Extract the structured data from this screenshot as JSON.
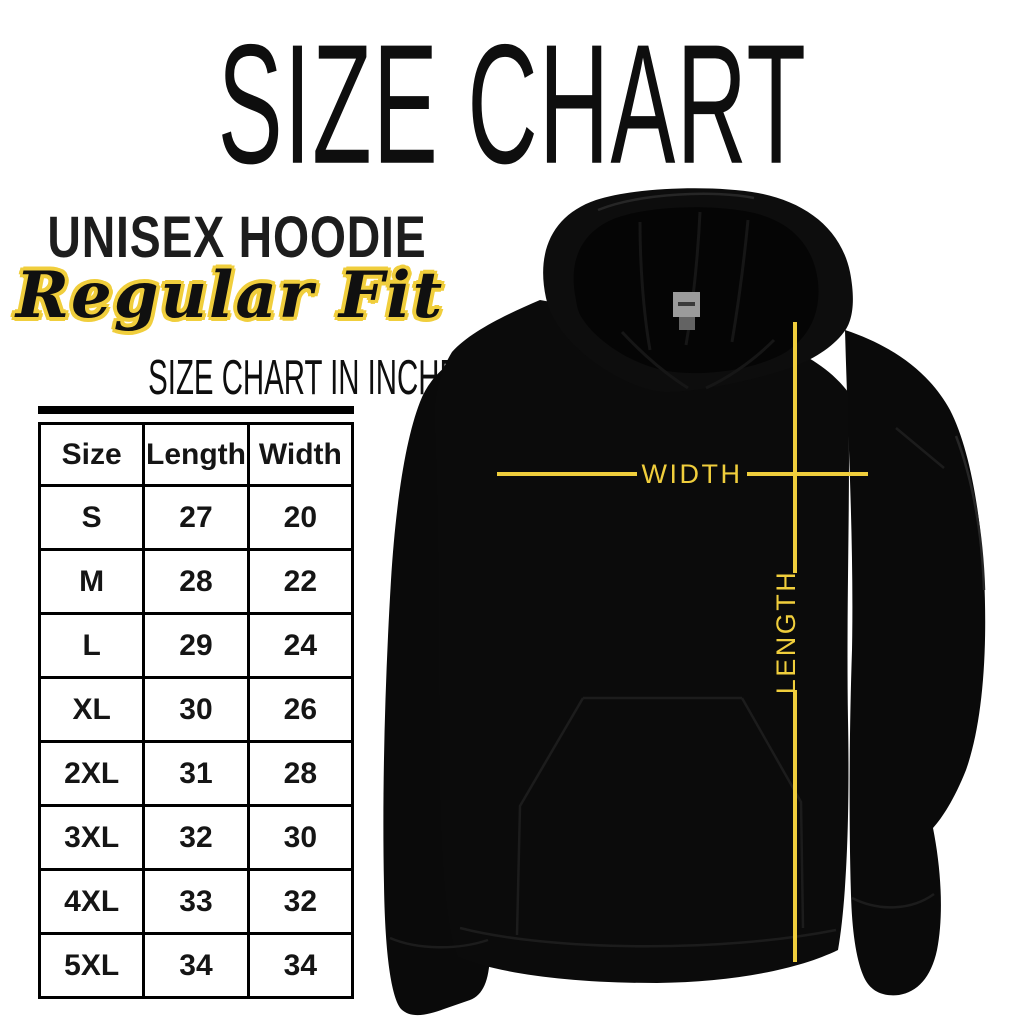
{
  "title": "SIZE CHART",
  "brand": {
    "product_line": "UNISEX HOODIE",
    "fit": "Regular Fit"
  },
  "table_section": {
    "heading": "SIZE CHART IN INCHES"
  },
  "size_table": {
    "columns": [
      "Size",
      "Length",
      "Width"
    ],
    "rows": [
      {
        "size": "S",
        "length": "27",
        "width": "20"
      },
      {
        "size": "M",
        "length": "28",
        "width": "22"
      },
      {
        "size": "L",
        "length": "29",
        "width": "24"
      },
      {
        "size": "XL",
        "length": "30",
        "width": "26"
      },
      {
        "size": "2XL",
        "length": "31",
        "width": "28"
      },
      {
        "size": "3XL",
        "length": "32",
        "width": "30"
      },
      {
        "size": "4XL",
        "length": "33",
        "width": "32"
      },
      {
        "size": "5XL",
        "length": "34",
        "width": "34"
      }
    ],
    "units": "inches"
  },
  "diagram": {
    "subject": "black pullover hoodie, front view",
    "width_label": "WIDTH",
    "length_label": "LENGTH"
  },
  "colors": {
    "accent_yellow": "#F0CE3C",
    "text_black": "#111111",
    "background": "#ffffff",
    "hoodie_black": "#0b0b0b"
  }
}
